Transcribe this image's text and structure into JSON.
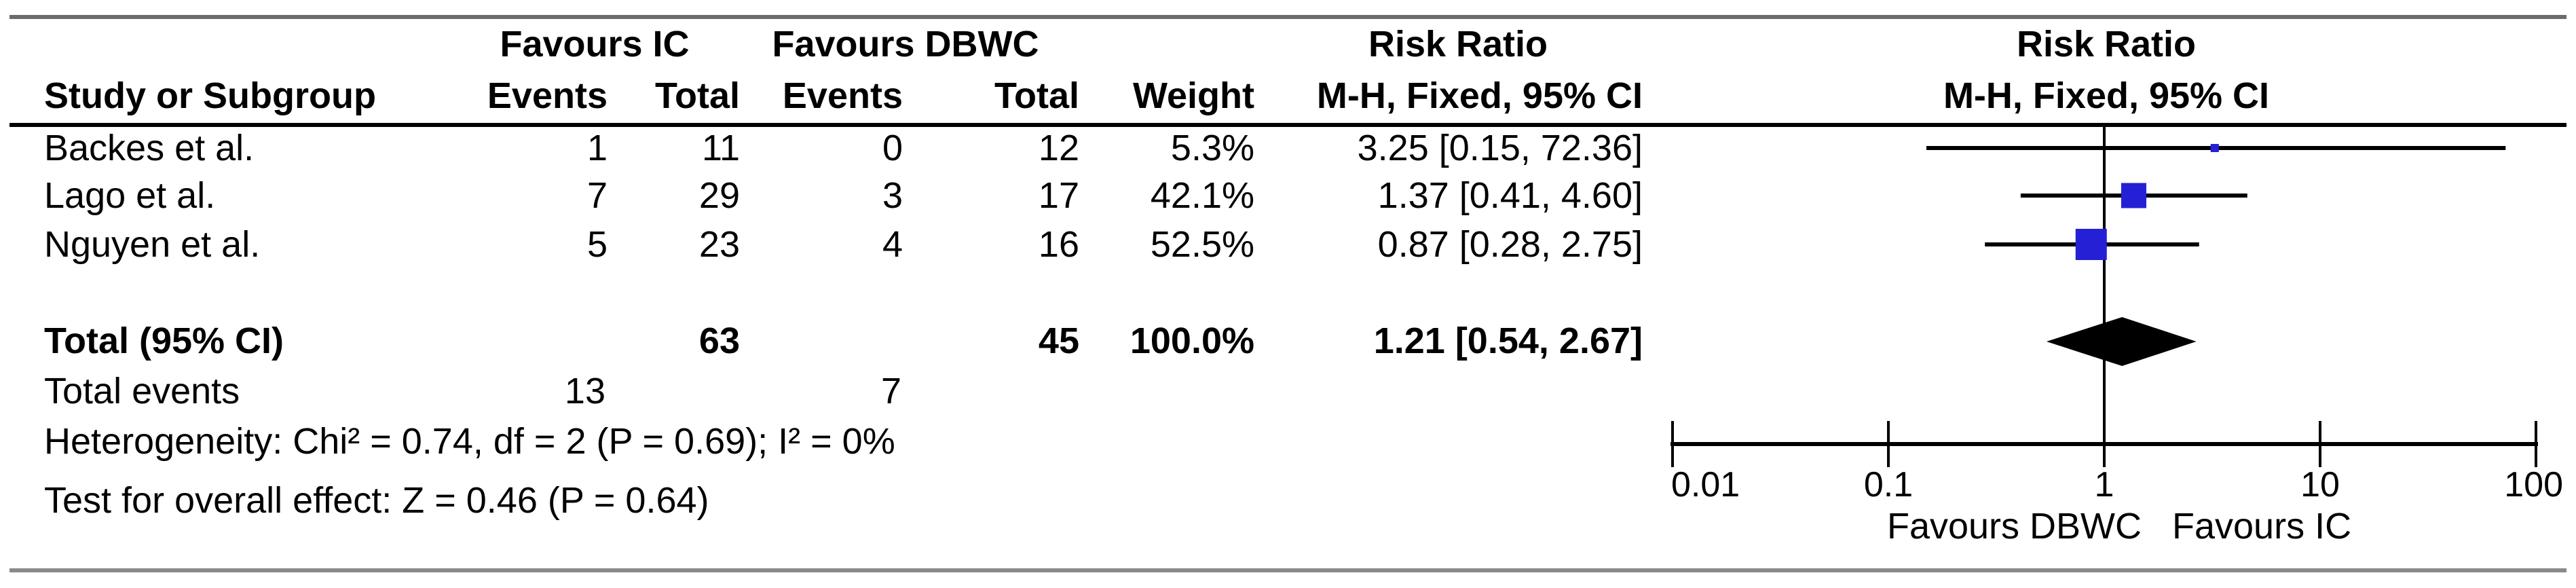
{
  "header": {
    "group_ic": "Favours IC",
    "group_dbwc": "Favours DBWC",
    "risk_ratio": "Risk Ratio",
    "method_ci": "M-H, Fixed, 95% CI",
    "study": "Study or Subgroup",
    "events": "Events",
    "total": "Total",
    "weight": "Weight",
    "plot_risk_ratio": "Risk Ratio",
    "plot_method_ci": "M-H, Fixed, 95% CI"
  },
  "rows": [
    {
      "study": "Backes et al.",
      "ic_events": "1",
      "ic_total": "11",
      "dbwc_events": "0",
      "dbwc_total": "12",
      "weight": "5.3%",
      "ci": "3.25 [0.15, 72.36]"
    },
    {
      "study": "Lago et al.",
      "ic_events": "7",
      "ic_total": "29",
      "dbwc_events": "3",
      "dbwc_total": "17",
      "weight": "42.1%",
      "ci": "1.37 [0.41, 4.60]"
    },
    {
      "study": "Nguyen et al.",
      "ic_events": "5",
      "ic_total": "23",
      "dbwc_events": "4",
      "dbwc_total": "16",
      "weight": "52.5%",
      "ci": "0.87 [0.28, 2.75]"
    }
  ],
  "total_row": {
    "label": "Total (95% CI)",
    "ic_total": "63",
    "dbwc_total": "45",
    "weight": "100.0%",
    "ci": "1.21 [0.54, 2.67]"
  },
  "total_events": {
    "label": "Total events",
    "ic": "13",
    "dbwc": "7"
  },
  "footnotes": {
    "heterogeneity": "Heterogeneity: Chi² = 0.74, df = 2 (P = 0.69); I² = 0%",
    "overall": "Test for overall effect: Z = 0.46 (P = 0.64)"
  },
  "colors": {
    "marker_blue": "#2520d5",
    "diamond_black": "#000000",
    "rule_dark": "#6b6b6b",
    "rule_light": "#8a8a8a",
    "header_rule": "#000000"
  },
  "chart_data": {
    "type": "forest",
    "effect_measure": "Risk Ratio",
    "method": "M-H, Fixed, 95% CI",
    "x_scale": "log10",
    "x_range": [
      0.01,
      100
    ],
    "axis_ticks": [
      0.01,
      0.1,
      1,
      10,
      100
    ],
    "axis_tick_labels": [
      "0.01",
      "0.1",
      "1",
      "10",
      "100"
    ],
    "null_line": 1,
    "x_label_left": "Favours DBWC",
    "x_label_right": "Favours IC",
    "studies": [
      {
        "name": "Backes et al.",
        "rr": 3.25,
        "ci_low": 0.15,
        "ci_high": 72.36,
        "weight_pct": 5.3
      },
      {
        "name": "Lago et al.",
        "rr": 1.37,
        "ci_low": 0.41,
        "ci_high": 4.6,
        "weight_pct": 42.1
      },
      {
        "name": "Nguyen et al.",
        "rr": 0.87,
        "ci_low": 0.28,
        "ci_high": 2.75,
        "weight_pct": 52.5
      }
    ],
    "total": {
      "label": "Total (95% CI)",
      "rr": 1.21,
      "ci_low": 0.54,
      "ci_high": 2.67,
      "weight_pct": 100.0
    }
  }
}
